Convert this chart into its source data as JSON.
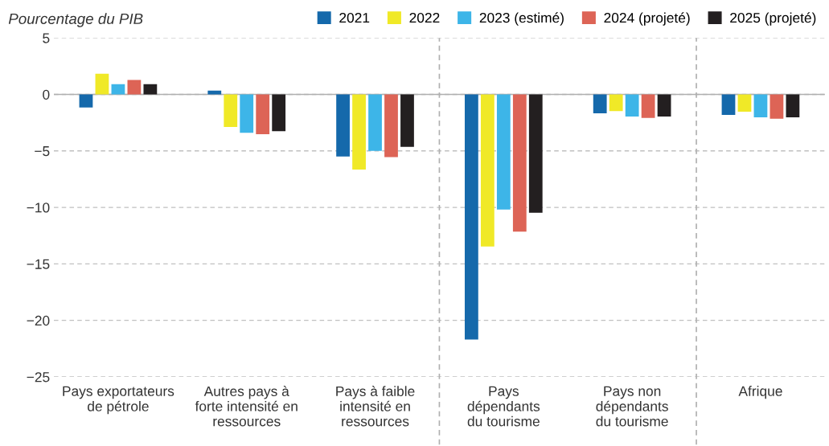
{
  "chart_data": {
    "type": "bar",
    "title": "Pourcentage du PIB",
    "categories": [
      "Pays exportateurs\nde pétrole",
      "Autres pays à\nforte intensité en\nressources",
      "Pays à faible\nintensité en\nressources",
      "Pays\ndépendants\ndu tourisme",
      "Pays non\ndépendants\ndu tourisme",
      "Afrique"
    ],
    "series": [
      {
        "name": "2021",
        "color": "#1569ab",
        "values": [
          -1.15,
          0.34,
          -5.5,
          -21.7,
          -1.67,
          -1.81
        ]
      },
      {
        "name": "2022",
        "color": "#f0e927",
        "values": [
          1.83,
          -2.88,
          -6.66,
          -13.47,
          -1.47,
          -1.53
        ]
      },
      {
        "name": "2023 (estimé)",
        "color": "#3db5e8",
        "values": [
          0.91,
          -3.39,
          -5.0,
          -10.19,
          -1.95,
          -2.02
        ]
      },
      {
        "name": "2024 (projeté)",
        "color": "#dd6456",
        "values": [
          1.27,
          -3.53,
          -5.55,
          -12.14,
          -2.09,
          -2.16
        ]
      },
      {
        "name": "2025 (projeté)",
        "color": "#231f20",
        "values": [
          0.91,
          -3.25,
          -4.64,
          -10.47,
          -1.95,
          -2.02
        ]
      }
    ],
    "ylim": [
      -25,
      5
    ],
    "yticks": [
      {
        "value": -25,
        "label": "−25"
      },
      {
        "value": -20,
        "label": "−20"
      },
      {
        "value": -15,
        "label": "−15"
      },
      {
        "value": -10,
        "label": "−10"
      },
      {
        "value": -5,
        "label": "−5"
      },
      0,
      5
    ],
    "ref_lines": [
      {
        "axis": "y",
        "value": 0,
        "color": "#b0b0b0",
        "line_style": "solid"
      }
    ],
    "grid": "y",
    "legend": "top right"
  }
}
